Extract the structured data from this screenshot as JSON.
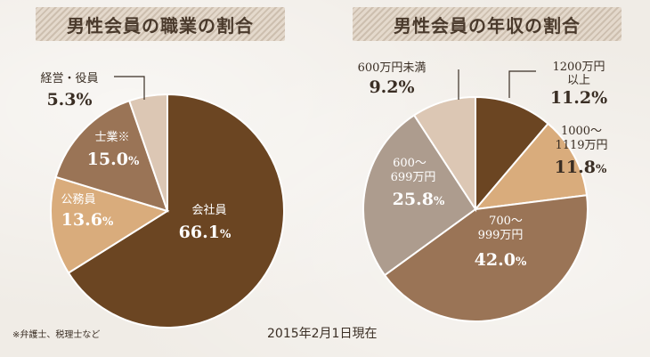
{
  "colors": {
    "darkest": "#6b4522",
    "medium": "#9a7456",
    "tan": "#d9ac7c",
    "gray": "#ad9c8e",
    "lightest": "#dcc7b4"
  },
  "chart_data": [
    {
      "type": "pie",
      "title": "男性会員の職業の割合",
      "unit": "%",
      "slices": [
        {
          "label": "会社員",
          "value": 66.1
        },
        {
          "label": "公務員",
          "value": 13.6
        },
        {
          "label": "士業※",
          "value": 15.0
        },
        {
          "label": "経営・役員",
          "value": 5.3
        }
      ]
    },
    {
      "type": "pie",
      "title": "男性会員の年収の割合",
      "unit": "%",
      "slices": [
        {
          "label": "1200万円以上",
          "value": 11.2
        },
        {
          "label": "1000～1119万円",
          "value": 11.8
        },
        {
          "label": "700～999万円",
          "value": 42.0
        },
        {
          "label": "600～699万円",
          "value": 25.8
        },
        {
          "label": "600万円未満",
          "value": 9.2
        }
      ]
    }
  ],
  "labels": {
    "occupation": {
      "kaishain": "会社員",
      "koumuin": "公務員",
      "shigyo": "士業※",
      "keiei": "経営・役員"
    },
    "income": {
      "over1200_line1": "1200万円",
      "over1200_line2": "以上",
      "r1000_line1": "1000～",
      "r1000_line2": "1119万円",
      "r700_line1": "700～",
      "r700_line2": "999万円",
      "r600_line1": "600～",
      "r600_line2": "699万円",
      "under600": "600万円未満"
    },
    "values": {
      "kaishain": "66.1",
      "koumuin": "13.6",
      "shigyo": "15.0",
      "keiei": "5.3%",
      "over1200": "11.2%",
      "r1000": "11.8",
      "r700": "42.0",
      "r600": "25.8",
      "under600": "9.2%",
      "pct": "%"
    }
  },
  "footnote": "※弁護士、税理士など",
  "date_note": "2015年2月1日現在"
}
